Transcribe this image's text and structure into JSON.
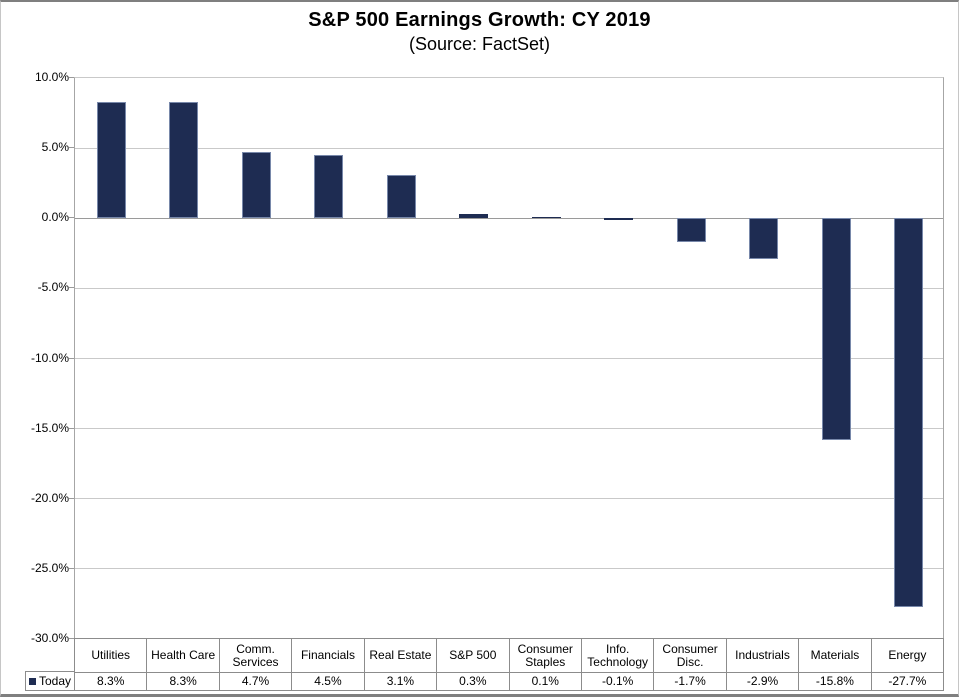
{
  "chart_data": {
    "type": "bar",
    "title": "S&P 500 Earnings Growth: CY 2019",
    "subtitle": "(Source: FactSet)",
    "categories": [
      "Utilities",
      "Health Care",
      "Comm. Services",
      "Financials",
      "Real Estate",
      "S&P 500",
      "Consumer Staples",
      "Info. Technology",
      "Consumer Disc.",
      "Industrials",
      "Materials",
      "Energy"
    ],
    "series": [
      {
        "name": "Today",
        "values": [
          8.3,
          8.3,
          4.7,
          4.5,
          3.1,
          0.3,
          0.1,
          -0.1,
          -1.7,
          -2.9,
          -15.8,
          -27.7
        ]
      }
    ],
    "value_labels": [
      "8.3%",
      "8.3%",
      "4.7%",
      "4.5%",
      "3.1%",
      "0.3%",
      "0.1%",
      "-0.1%",
      "-1.7%",
      "-2.9%",
      "-15.8%",
      "-27.7%"
    ],
    "xlabel": "",
    "ylabel": "",
    "ylim": [
      -30,
      10
    ],
    "ytick_step": 5,
    "ytick_labels": [
      "10.0%",
      "5.0%",
      "0.0%",
      "-5.0%",
      "-10.0%",
      "-15.0%",
      "-20.0%",
      "-25.0%",
      "-30.0%"
    ],
    "grid": true,
    "legend": {
      "label": "Today",
      "position": "bottom-left"
    },
    "colors": {
      "bar_fill": "#1e2c52",
      "bar_border": "#7888aa",
      "gridline": "#c9c9c9",
      "zero_line": "#9a9a9a",
      "table_border": "#8c8c8c",
      "frame_border": "#7f7f7f",
      "text": "#000000"
    }
  }
}
